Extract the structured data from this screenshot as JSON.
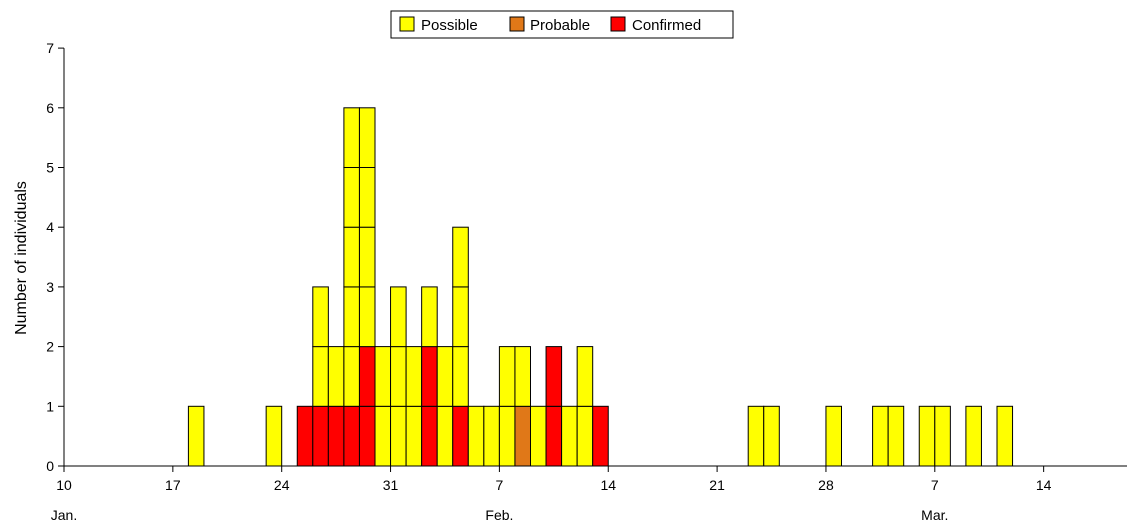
{
  "chart_data": {
    "type": "bar",
    "stacked": true,
    "ylabel": "Number of individuals",
    "ylim": [
      0,
      7
    ],
    "y_ticks": [
      "0",
      "1",
      "2",
      "3",
      "4",
      "5",
      "6",
      "7"
    ],
    "xlim_days": [
      10,
      51
    ],
    "x_ticks": [
      {
        "day": 10,
        "label": "10"
      },
      {
        "day": 17,
        "label": "17"
      },
      {
        "day": 24,
        "label": "24"
      },
      {
        "day": 31,
        "label": "31"
      },
      {
        "day": 38,
        "label": "7"
      },
      {
        "day": 45,
        "label": "14"
      },
      {
        "day": 52,
        "label": "21"
      },
      {
        "day": 59,
        "label": "28"
      },
      {
        "day": 66,
        "label": "7"
      },
      {
        "day": 73,
        "label": "14"
      }
    ],
    "month_labels": [
      {
        "day": 10,
        "label": "Jan."
      },
      {
        "day": 38,
        "label": "Feb."
      },
      {
        "day": 66,
        "label": "Mar."
      }
    ],
    "legend_position": "top-center",
    "series": [
      {
        "name": "Possible",
        "color": "#ffff00"
      },
      {
        "name": "Probable",
        "color": "#e07818"
      },
      {
        "name": "Confirmed",
        "color": "#ff0000"
      }
    ],
    "bars": [
      {
        "date": "Jan 18",
        "day": 18,
        "cases": [
          "Possible"
        ]
      },
      {
        "date": "Jan 23",
        "day": 23,
        "cases": [
          "Possible"
        ]
      },
      {
        "date": "Jan 25",
        "day": 25,
        "cases": [
          "Confirmed"
        ]
      },
      {
        "date": "Jan 26",
        "day": 26,
        "cases": [
          "Confirmed",
          "Possible",
          "Possible"
        ]
      },
      {
        "date": "Jan 27",
        "day": 27,
        "cases": [
          "Confirmed",
          "Possible"
        ]
      },
      {
        "date": "Jan 28",
        "day": 28,
        "cases": [
          "Confirmed",
          "Possible",
          "Possible",
          "Possible",
          "Possible",
          "Possible"
        ]
      },
      {
        "date": "Jan 29",
        "day": 29,
        "cases": [
          "Confirmed",
          "Confirmed",
          "Possible",
          "Possible",
          "Possible",
          "Possible"
        ]
      },
      {
        "date": "Jan 30",
        "day": 30,
        "cases": [
          "Possible",
          "Possible"
        ]
      },
      {
        "date": "Jan 31",
        "day": 31,
        "cases": [
          "Possible",
          "Possible",
          "Possible"
        ]
      },
      {
        "date": "Feb 1",
        "day": 32,
        "cases": [
          "Possible",
          "Possible"
        ]
      },
      {
        "date": "Feb 2",
        "day": 33,
        "cases": [
          "Confirmed",
          "Confirmed",
          "Possible"
        ]
      },
      {
        "date": "Feb 3",
        "day": 34,
        "cases": [
          "Possible",
          "Possible"
        ]
      },
      {
        "date": "Feb 4",
        "day": 35,
        "cases": [
          "Confirmed",
          "Possible",
          "Possible",
          "Possible"
        ]
      },
      {
        "date": "Feb 5",
        "day": 36,
        "cases": [
          "Possible"
        ]
      },
      {
        "date": "Feb 6",
        "day": 37,
        "cases": [
          "Possible"
        ]
      },
      {
        "date": "Feb 7",
        "day": 38,
        "cases": [
          "Possible",
          "Possible"
        ]
      },
      {
        "date": "Feb 8",
        "day": 39,
        "cases": [
          "Probable",
          "Possible"
        ]
      },
      {
        "date": "Feb 9",
        "day": 40,
        "cases": [
          "Possible"
        ]
      },
      {
        "date": "Feb 10",
        "day": 41,
        "cases": [
          "Confirmed",
          "Confirmed"
        ]
      },
      {
        "date": "Feb 11",
        "day": 42,
        "cases": [
          "Possible"
        ]
      },
      {
        "date": "Feb 12",
        "day": 43,
        "cases": [
          "Possible",
          "Possible"
        ]
      },
      {
        "date": "Feb 13",
        "day": 44,
        "cases": [
          "Confirmed"
        ]
      },
      {
        "date": "Feb 23",
        "day": 54,
        "cases": [
          "Possible"
        ]
      },
      {
        "date": "Feb 24",
        "day": 55,
        "cases": [
          "Possible"
        ]
      },
      {
        "date": "Feb 28",
        "day": 59,
        "cases": [
          "Possible"
        ]
      },
      {
        "date": "Mar 3",
        "day": 62,
        "cases": [
          "Possible"
        ]
      },
      {
        "date": "Mar 4",
        "day": 63,
        "cases": [
          "Possible"
        ]
      },
      {
        "date": "Mar 6",
        "day": 65,
        "cases": [
          "Possible"
        ]
      },
      {
        "date": "Mar 7",
        "day": 66,
        "cases": [
          "Possible"
        ]
      },
      {
        "date": "Mar 9",
        "day": 68,
        "cases": [
          "Possible"
        ]
      },
      {
        "date": "Mar 11",
        "day": 70,
        "cases": [
          "Possible"
        ]
      }
    ]
  }
}
